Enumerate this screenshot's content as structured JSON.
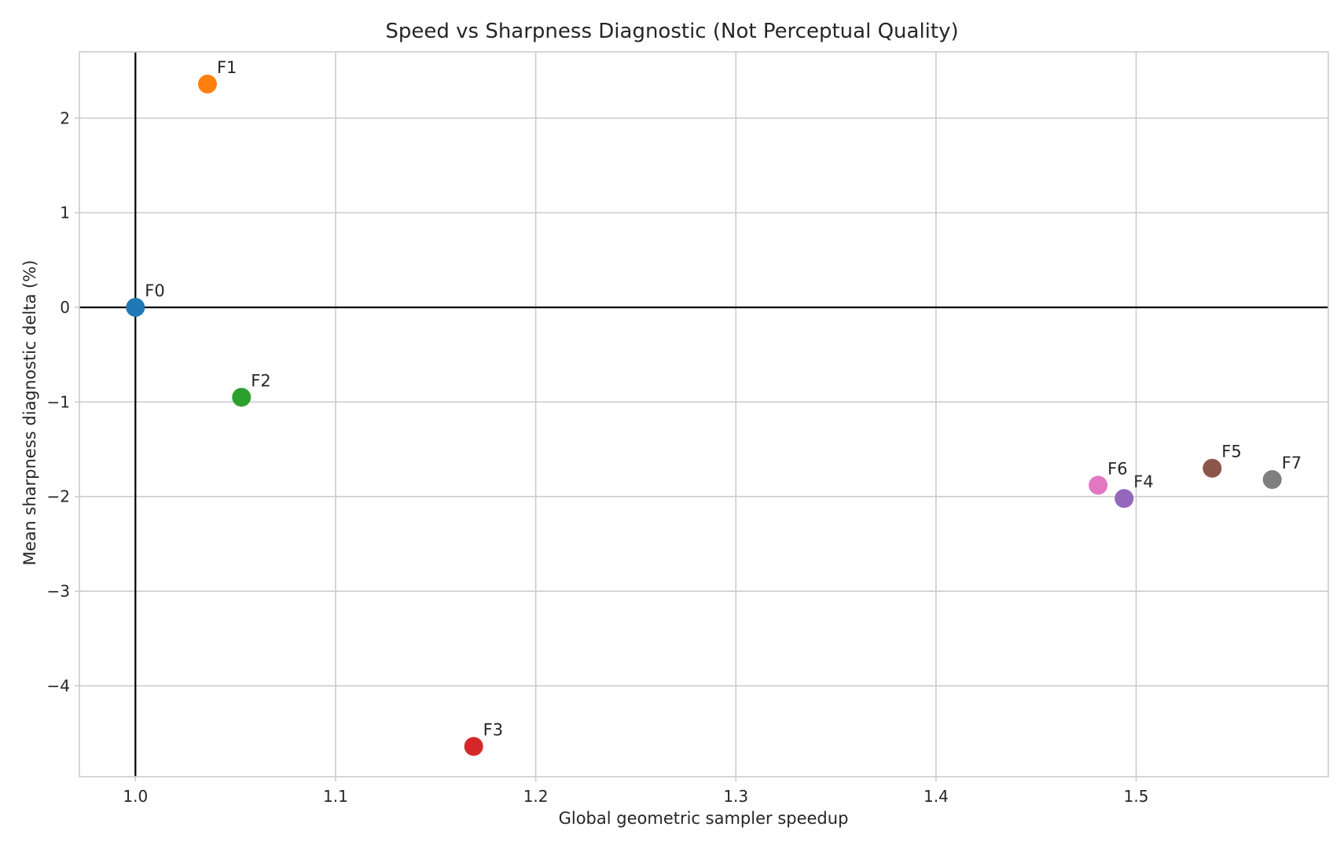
{
  "chart_data": {
    "type": "scatter",
    "title": "Speed vs Sharpness Diagnostic (Not Perceptual Quality)",
    "xlabel": "Global geometric sampler speedup",
    "ylabel": "Mean sharpness diagnostic delta (%)",
    "xlim": [
      0.972,
      1.596
    ],
    "ylim": [
      -4.96,
      2.7
    ],
    "x_ticks": [
      1.0,
      1.1,
      1.2,
      1.3,
      1.4,
      1.5
    ],
    "x_tick_labels": [
      "1.0",
      "1.1",
      "1.2",
      "1.3",
      "1.4",
      "1.5"
    ],
    "y_ticks": [
      -4,
      -3,
      -2,
      -1,
      0,
      1,
      2
    ],
    "y_tick_labels": [
      "−4",
      "−3",
      "−2",
      "−1",
      "0",
      "1",
      "2"
    ],
    "grid": true,
    "reference_lines": {
      "x": 1.0,
      "y": 0
    },
    "points": [
      {
        "label": "F0",
        "x": 1.0,
        "y": 0.0,
        "color": "#1f77b4"
      },
      {
        "label": "F1",
        "x": 1.036,
        "y": 2.36,
        "color": "#ff7f0e"
      },
      {
        "label": "F2",
        "x": 1.053,
        "y": -0.95,
        "color": "#2ca02c"
      },
      {
        "label": "F3",
        "x": 1.169,
        "y": -4.64,
        "color": "#d62728"
      },
      {
        "label": "F4",
        "x": 1.494,
        "y": -2.02,
        "color": "#9467bd"
      },
      {
        "label": "F5",
        "x": 1.538,
        "y": -1.7,
        "color": "#8c564b"
      },
      {
        "label": "F6",
        "x": 1.481,
        "y": -1.88,
        "color": "#e377c2"
      },
      {
        "label": "F7",
        "x": 1.568,
        "y": -1.82,
        "color": "#7f7f7f"
      }
    ]
  }
}
